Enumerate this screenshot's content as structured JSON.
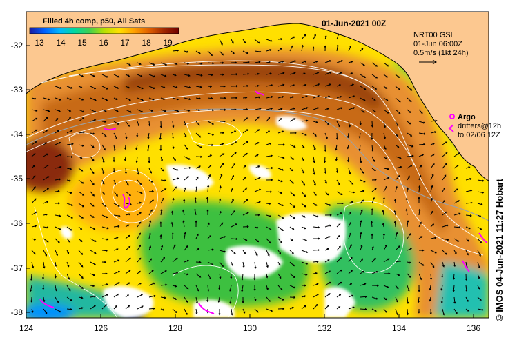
{
  "map": {
    "title": "Filled 4h comp, p50, All Sats",
    "date_label": "01-Jun-2021 00Z",
    "credit": "©  IMOS 04-Jun-2021 11:27 Hobart",
    "colorbar": {
      "ticks": [
        "13",
        "14",
        "15",
        "16",
        "17",
        "18",
        "19"
      ],
      "stops": [
        "#1a1aa0",
        "#0060ff",
        "#00b8ff",
        "#00d8a0",
        "#40d050",
        "#b8e000",
        "#ffe000",
        "#ffa000",
        "#e06000",
        "#a02800",
        "#700000"
      ]
    },
    "lon_ticks": [
      "124",
      "126",
      "128",
      "130",
      "132",
      "134",
      "136"
    ],
    "lat_ticks": [
      "-32",
      "-33",
      "-34",
      "-35",
      "-36",
      "-37",
      "-38"
    ],
    "legend": {
      "line1": "NRT00 GSL",
      "line2": "01-Jun 06:00Z",
      "line3": "0.5m/s (1kt 24h)"
    },
    "argo": {
      "label": "Argo",
      "line1": "drifters@12h",
      "line2": "to 02/06 12Z"
    },
    "colors": {
      "land": "#fcc890",
      "argo": "#ff00ff",
      "ssh": "#ffffff"
    }
  }
}
